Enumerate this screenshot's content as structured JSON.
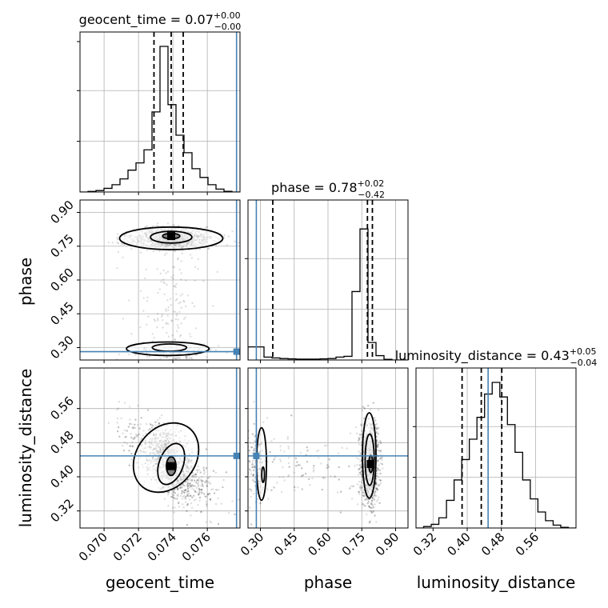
{
  "chart_data": {
    "type": "corner",
    "parameters": [
      "geocent_time",
      "phase",
      "luminosity_distance"
    ],
    "titles": [
      {
        "param": "geocent_time",
        "label": "geocent_time",
        "median": "0.07",
        "plus": "+0.00",
        "minus": "−0.00"
      },
      {
        "param": "phase",
        "label": "phase",
        "median": "0.78",
        "plus": "+0.02",
        "minus": "−0.42"
      },
      {
        "param": "luminosity_distance",
        "label": "luminosity_distance",
        "median": "0.43",
        "plus": "+0.05",
        "minus": "−0.04"
      }
    ],
    "axis_labels": {
      "x": [
        "geocent_time",
        "phase",
        "luminosity_distance"
      ],
      "y": [
        "phase",
        "luminosity_distance"
      ]
    },
    "ranges": {
      "geocent_time": [
        0.0686,
        0.0779
      ],
      "phase": [
        0.245,
        0.955
      ],
      "luminosity_distance": [
        0.28,
        0.655
      ]
    },
    "ticks": {
      "geocent_time": {
        "values": [
          0.07,
          0.072,
          0.074,
          0.076
        ],
        "labels": [
          "0.070",
          "0.072",
          "0.074",
          "0.076"
        ]
      },
      "phase": {
        "values": [
          0.3,
          0.45,
          0.6,
          0.75,
          0.9
        ],
        "labels": [
          "0.30",
          "0.45",
          "0.60",
          "0.75",
          "0.90"
        ]
      },
      "luminosity_distance": {
        "values": [
          0.32,
          0.4,
          0.48,
          0.56
        ],
        "labels": [
          "0.32",
          "0.40",
          "0.48",
          "0.56"
        ]
      }
    },
    "truths": {
      "geocent_time": 0.0777,
      "phase": 0.282,
      "luminosity_distance": 0.449
    },
    "quantiles": {
      "geocent_time": [
        0.0729,
        0.0739,
        0.0746
      ],
      "phase": [
        0.355,
        0.775,
        0.797
      ],
      "luminosity_distance": [
        0.388,
        0.433,
        0.481
      ]
    },
    "histograms": {
      "geocent_time": {
        "counts": [
          0.0,
          0.004,
          0.01,
          0.025,
          0.05,
          0.09,
          0.15,
          0.2,
          0.29,
          0.55,
          1.0,
          0.6,
          0.39,
          0.27,
          0.16,
          0.1,
          0.05,
          0.02,
          0.005,
          0.0
        ]
      },
      "phase": {
        "counts": [
          0.09,
          0.09,
          0.02,
          0.014,
          0.01,
          0.008,
          0.006,
          0.006,
          0.006,
          0.008,
          0.01,
          0.02,
          0.025,
          0.47,
          0.9,
          0.12,
          0.03,
          0.005,
          0.0,
          0.0
        ]
      },
      "luminosity_distance": {
        "counts": [
          0.0,
          0.01,
          0.025,
          0.07,
          0.19,
          0.33,
          0.47,
          0.61,
          0.76,
          0.92,
          1.0,
          0.9,
          0.71,
          0.52,
          0.33,
          0.2,
          0.11,
          0.05,
          0.02,
          0.005,
          0.0
        ]
      }
    },
    "grid": true
  }
}
